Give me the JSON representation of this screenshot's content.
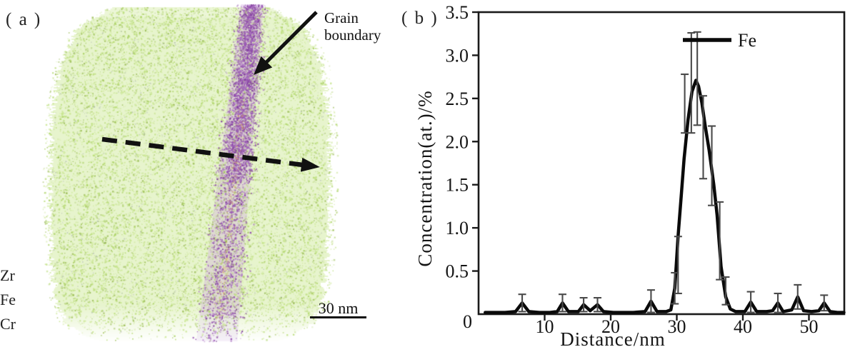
{
  "panel_a": {
    "label": "( a )",
    "grain_boundary_label": {
      "line1": "Grain",
      "line2": "boundary"
    },
    "element_labels": [
      "Zr",
      "Fe",
      "Cr"
    ],
    "scale_bar_label": "30 nm",
    "colors": {
      "matrix_green": "#c3e184",
      "grain_boundary_purple": "#9b59b6",
      "arrow_black": "#111111"
    }
  },
  "panel_b": {
    "label": "( b )",
    "legend_label": "Fe"
  },
  "chart_data": {
    "type": "line",
    "title": "",
    "xlabel": "Distance/nm",
    "ylabel": "Concentration(at.)/%",
    "xlim": [
      0,
      55.4
    ],
    "ylim": [
      0,
      3.5
    ],
    "x_ticks": [
      0,
      10,
      20,
      30,
      40,
      50
    ],
    "y_ticks": [
      0,
      0.5,
      1.0,
      1.5,
      2.0,
      2.5,
      3.0,
      3.5
    ],
    "grid": false,
    "legend_position": "top-right",
    "line_color": "#0a0a0a",
    "error_bar_color": "#4a4a4a",
    "series": [
      {
        "name": "Fe",
        "points": [
          [
            1.0,
            0.02
          ],
          [
            2.5,
            0.02
          ],
          [
            4.0,
            0.02
          ],
          [
            5.6,
            0.03
          ],
          [
            6.6,
            0.13
          ],
          [
            7.6,
            0.03
          ],
          [
            9.2,
            0.02
          ],
          [
            10.8,
            0.02
          ],
          [
            11.9,
            0.03
          ],
          [
            12.7,
            0.13
          ],
          [
            13.6,
            0.03
          ],
          [
            15.1,
            0.03
          ],
          [
            15.9,
            0.11
          ],
          [
            16.9,
            0.04
          ],
          [
            18.0,
            0.11
          ],
          [
            18.9,
            0.03
          ],
          [
            20.4,
            0.02
          ],
          [
            21.9,
            0.02
          ],
          [
            23.4,
            0.02
          ],
          [
            25.2,
            0.03
          ],
          [
            26.1,
            0.15
          ],
          [
            27.0,
            0.03
          ],
          [
            28.4,
            0.03
          ],
          [
            29.1,
            0.05
          ],
          [
            29.7,
            0.3
          ],
          [
            30.2,
            0.9
          ],
          [
            30.7,
            1.4
          ],
          [
            31.1,
            1.8
          ],
          [
            31.7,
            2.25
          ],
          [
            32.3,
            2.58
          ],
          [
            32.9,
            2.71
          ],
          [
            33.3,
            2.64
          ],
          [
            33.8,
            2.45
          ],
          [
            34.3,
            2.18
          ],
          [
            34.9,
            1.9
          ],
          [
            35.6,
            1.5
          ],
          [
            36.1,
            1.15
          ],
          [
            36.7,
            0.55
          ],
          [
            37.4,
            0.2
          ],
          [
            38.1,
            0.06
          ],
          [
            38.9,
            0.03
          ],
          [
            40.3,
            0.03
          ],
          [
            41.2,
            0.14
          ],
          [
            42.1,
            0.03
          ],
          [
            43.6,
            0.03
          ],
          [
            44.5,
            0.04
          ],
          [
            45.3,
            0.13
          ],
          [
            46.1,
            0.03
          ],
          [
            47.4,
            0.05
          ],
          [
            48.3,
            0.2
          ],
          [
            49.2,
            0.04
          ],
          [
            50.4,
            0.03
          ],
          [
            51.5,
            0.04
          ],
          [
            52.3,
            0.13
          ],
          [
            53.2,
            0.03
          ],
          [
            54.3,
            0.02
          ],
          [
            55.3,
            0.02
          ]
        ]
      }
    ],
    "error_bars": [
      [
        6.6,
        0.13,
        0.1
      ],
      [
        12.7,
        0.13,
        0.1
      ],
      [
        15.9,
        0.11,
        0.08
      ],
      [
        18.0,
        0.11,
        0.08
      ],
      [
        26.1,
        0.15,
        0.13
      ],
      [
        29.7,
        0.3,
        0.18
      ],
      [
        30.2,
        0.57,
        0.33
      ],
      [
        31.2,
        2.44,
        0.34
      ],
      [
        32.2,
        2.68,
        0.58
      ],
      [
        33.1,
        2.73,
        0.54
      ],
      [
        34.0,
        2.05,
        0.48
      ],
      [
        35.3,
        1.72,
        0.46
      ],
      [
        36.5,
        0.85,
        0.45
      ],
      [
        37.4,
        0.27,
        0.16
      ],
      [
        41.2,
        0.14,
        0.12
      ],
      [
        45.3,
        0.13,
        0.11
      ],
      [
        48.3,
        0.2,
        0.14
      ],
      [
        52.3,
        0.13,
        0.09
      ]
    ]
  }
}
